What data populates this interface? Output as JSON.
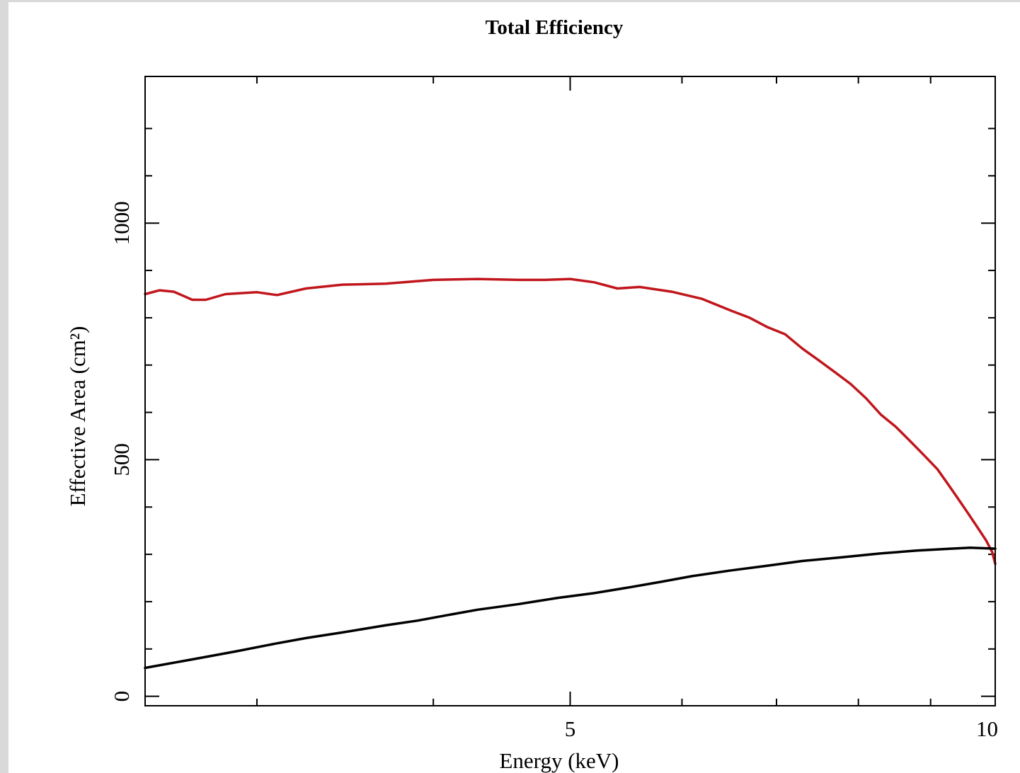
{
  "chart_data": {
    "type": "line",
    "title": "Total Efficiency",
    "xlabel": "Energy (keV)",
    "ylabel": "Effective Area (cm²)",
    "xscale": "log",
    "xlim": [
      2.5,
      10
    ],
    "ylim": [
      -20,
      1310
    ],
    "xticks": [
      {
        "value": 5,
        "label": "5"
      },
      {
        "value": 10,
        "label": "10"
      }
    ],
    "xminor": [
      3,
      4,
      6,
      7,
      8,
      9
    ],
    "yticks": [
      {
        "value": 0,
        "label": "0"
      },
      {
        "value": 500,
        "label": "500"
      },
      {
        "value": 1000,
        "label": "1000"
      }
    ],
    "yminor": [
      100,
      200,
      300,
      400,
      600,
      700,
      800,
      900,
      1100,
      1200
    ],
    "grid": false,
    "legend": "none",
    "series": [
      {
        "color": "#c0161c",
        "points": [
          [
            2.5,
            850
          ],
          [
            2.56,
            858
          ],
          [
            2.62,
            855
          ],
          [
            2.7,
            838
          ],
          [
            2.76,
            838
          ],
          [
            2.85,
            850
          ],
          [
            3.0,
            854
          ],
          [
            3.1,
            848
          ],
          [
            3.25,
            862
          ],
          [
            3.45,
            870
          ],
          [
            3.7,
            872
          ],
          [
            4.0,
            880
          ],
          [
            4.3,
            882
          ],
          [
            4.6,
            880
          ],
          [
            4.8,
            880
          ],
          [
            5.0,
            882
          ],
          [
            5.2,
            875
          ],
          [
            5.4,
            862
          ],
          [
            5.6,
            865
          ],
          [
            5.9,
            855
          ],
          [
            6.2,
            840
          ],
          [
            6.5,
            815
          ],
          [
            6.7,
            800
          ],
          [
            6.9,
            780
          ],
          [
            7.1,
            765
          ],
          [
            7.3,
            735
          ],
          [
            7.5,
            710
          ],
          [
            7.7,
            685
          ],
          [
            7.9,
            660
          ],
          [
            8.1,
            630
          ],
          [
            8.3,
            595
          ],
          [
            8.5,
            570
          ],
          [
            8.7,
            540
          ],
          [
            8.9,
            510
          ],
          [
            9.1,
            480
          ],
          [
            9.25,
            450
          ],
          [
            9.4,
            420
          ],
          [
            9.55,
            390
          ],
          [
            9.7,
            360
          ],
          [
            9.85,
            330
          ],
          [
            9.95,
            305
          ],
          [
            10.0,
            280
          ]
        ]
      },
      {
        "color": "#000000",
        "points": [
          [
            2.5,
            60
          ],
          [
            2.7,
            78
          ],
          [
            2.9,
            95
          ],
          [
            3.1,
            112
          ],
          [
            3.25,
            123
          ],
          [
            3.45,
            135
          ],
          [
            3.7,
            150
          ],
          [
            3.9,
            160
          ],
          [
            4.1,
            172
          ],
          [
            4.3,
            183
          ],
          [
            4.6,
            195
          ],
          [
            4.9,
            208
          ],
          [
            5.2,
            218
          ],
          [
            5.5,
            230
          ],
          [
            5.8,
            242
          ],
          [
            6.1,
            254
          ],
          [
            6.5,
            266
          ],
          [
            6.9,
            276
          ],
          [
            7.3,
            286
          ],
          [
            7.8,
            294
          ],
          [
            8.3,
            302
          ],
          [
            8.8,
            308
          ],
          [
            9.3,
            312
          ],
          [
            9.6,
            314
          ],
          [
            10.0,
            312
          ]
        ]
      }
    ]
  }
}
